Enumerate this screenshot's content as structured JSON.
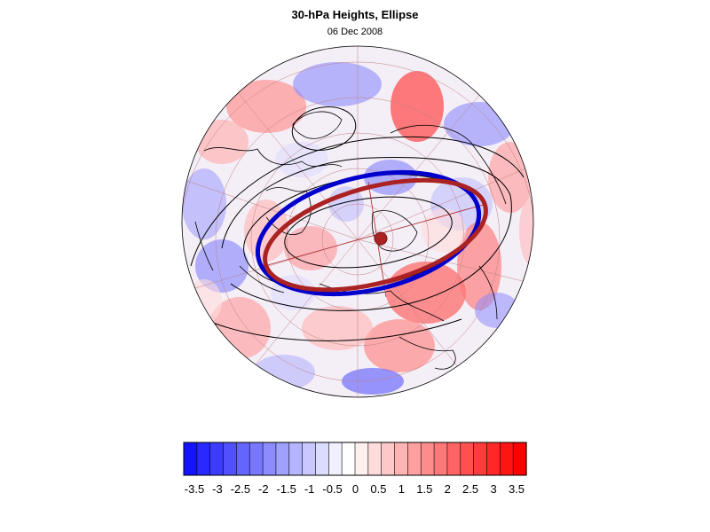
{
  "header": {
    "title": "30-hPa Heights, Ellipse",
    "date": "06 Dec 2008"
  },
  "colorbar": {
    "tick_labels": [
      "-3.5",
      "-3",
      "-2.5",
      "-2",
      "-1.5",
      "-1",
      "-0.5",
      "0",
      "0.5",
      "1",
      "1.5",
      "2",
      "2.5",
      "3",
      "3.5"
    ],
    "colors": [
      "#1414ff",
      "#2828ff",
      "#3c3cff",
      "#5050ff",
      "#6464ff",
      "#7878ff",
      "#8c8cff",
      "#a0a0ff",
      "#b4b4ff",
      "#c8c8ff",
      "#dcdcff",
      "#f0f0ff",
      "#ffffff",
      "#fff0f0",
      "#ffdcdc",
      "#ffc8c8",
      "#ffb4b4",
      "#ffa0a0",
      "#ff8c8c",
      "#ff7878",
      "#ff6464",
      "#ff5050",
      "#ff3c3c",
      "#ff2828",
      "#ff1414",
      "#ff0000"
    ]
  },
  "map": {
    "projection": "polar-orthographic",
    "legend_colors": {
      "observed_ellipse": "#0000cc",
      "climatology_ellipse": "#aa2222",
      "contours": "#000000",
      "coastlines": "#000000",
      "graticule": "#b06060"
    }
  }
}
